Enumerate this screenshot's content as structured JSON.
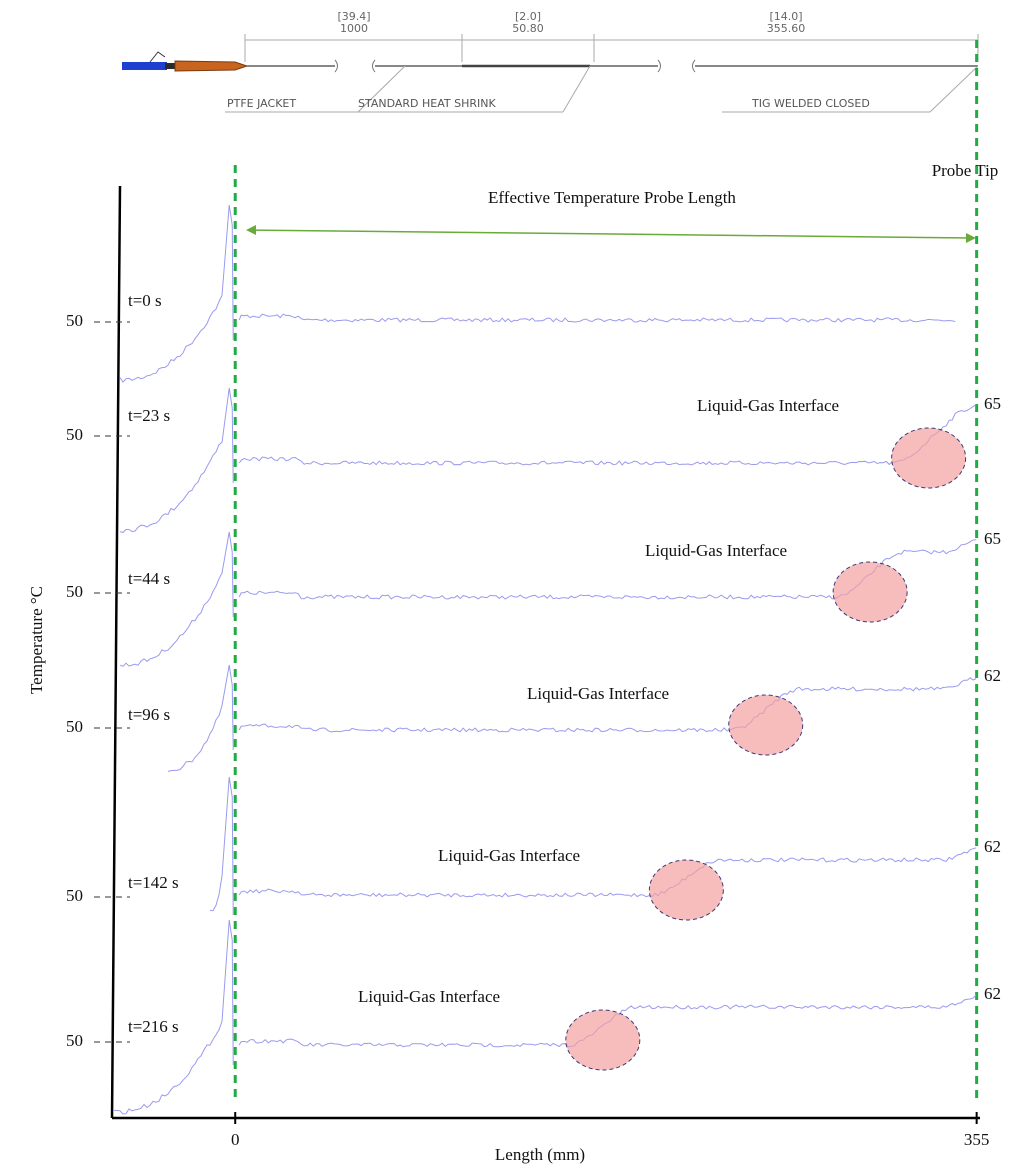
{
  "header": {
    "dims": [
      {
        "top": "[39.4]",
        "bottom": "1000"
      },
      {
        "top": "[2.0]",
        "bottom": "50.80"
      },
      {
        "top": "[14.0]",
        "bottom": "355.60"
      }
    ],
    "labels": [
      "PTFE JACKET",
      "STANDARD HEAT SHRINK",
      "TIG WELDED CLOSED"
    ]
  },
  "chart_data": {
    "type": "line",
    "x_label": "Length (mm)",
    "y_label": "Temperature °C",
    "annotation": "Effective Temperature Probe Length",
    "tip_label": "Probe Tip",
    "xlim": [
      -59,
      359
    ],
    "xticks": [
      0,
      355
    ],
    "color": "#9a9af0",
    "panels": [
      {
        "time_label": "t=0 s",
        "ytick": 50,
        "interface_label": null,
        "interface_x": null,
        "end_value": null
      },
      {
        "time_label": "t=23 s",
        "ytick": 50,
        "interface_label": "Liquid-Gas Interface",
        "interface_x": 332,
        "end_value": 65
      },
      {
        "time_label": "t=44 s",
        "ytick": 50,
        "interface_label": "Liquid-Gas Interface",
        "interface_x": 304,
        "end_value": 65
      },
      {
        "time_label": "t=96 s",
        "ytick": 50,
        "interface_label": "Liquid-Gas Interface",
        "interface_x": 254,
        "end_value": 62
      },
      {
        "time_label": "t=142 s",
        "ytick": 50,
        "interface_label": "Liquid-Gas Interface",
        "interface_x": 216,
        "end_value": 62
      },
      {
        "time_label": "t=216 s",
        "ytick": 50,
        "interface_label": "Liquid-Gas Interface",
        "interface_x": 176,
        "end_value": 62
      }
    ]
  }
}
